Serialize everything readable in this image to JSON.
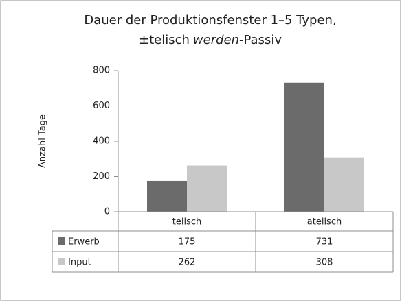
{
  "chart_data": {
    "type": "bar",
    "title": [
      "Dauer der Produktionsfenster 1–5 Typen,",
      "±telisch",
      "werden",
      "-Passiv"
    ],
    "title_italic": [
      false,
      false,
      true,
      false
    ],
    "ylabel": "Anzahl Tage",
    "categories": [
      "telisch",
      "atelisch"
    ],
    "series": [
      {
        "name": "Erwerb",
        "color": "#6b6b6b",
        "values": [
          175,
          731
        ]
      },
      {
        "name": "Input",
        "color": "#c8c8c8",
        "values": [
          262,
          308
        ]
      }
    ],
    "ylim": [
      0,
      800
    ],
    "yticks": [
      0,
      200,
      400,
      600,
      800
    ],
    "grid": false,
    "data_table": true
  }
}
